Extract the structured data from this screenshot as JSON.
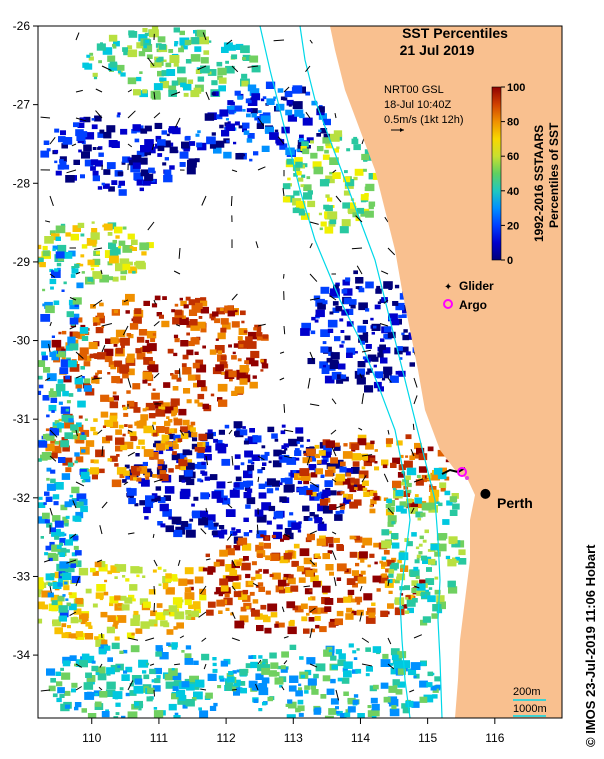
{
  "title": "SST Percentiles",
  "date": "21 Jul 2019",
  "current_info": {
    "source": "NRT00 GSL",
    "time": "18-Jul 10:40Z",
    "scale": "0.5m/s (1kt 12h)"
  },
  "colorbar": {
    "label_line1": "1992-2016 SSTAARS",
    "label_line2": "Percentiles of SST",
    "ticks": [
      "100",
      "80",
      "60",
      "40",
      "20",
      "0"
    ],
    "colors": [
      "#00007a",
      "#0000cc",
      "#0040ff",
      "#0090ff",
      "#00c8e0",
      "#28c8a0",
      "#70d060",
      "#b8e040",
      "#f0f000",
      "#f8c000",
      "#f09000",
      "#e06000",
      "#c03000",
      "#900000"
    ]
  },
  "legend": {
    "glider_label": "Glider",
    "argo_label": "Argo",
    "glider_color": "#e040e0",
    "argo_color": "#ff00ff"
  },
  "city": {
    "name": "Perth",
    "lon": 115.86,
    "lat": -31.95
  },
  "depth_labels": {
    "d200": "200m",
    "d1000": "1000m"
  },
  "axes": {
    "x_ticks": [
      "110",
      "111",
      "112",
      "113",
      "114",
      "115",
      "116"
    ],
    "y_ticks": [
      "-26",
      "-27",
      "-28",
      "-29",
      "-30",
      "-31",
      "-32",
      "-33",
      "-34"
    ]
  },
  "credit": "© IMOS 23-Jul-2019 11:06 Hobart",
  "colors": {
    "land": "#f9c08f",
    "ocean_blank": "#ffffff",
    "isobath": "#00d8e8"
  }
}
